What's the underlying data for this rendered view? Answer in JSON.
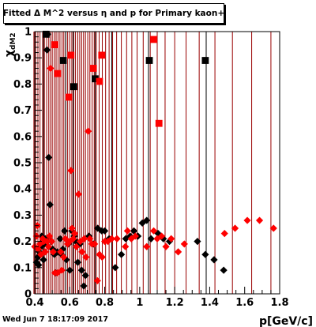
{
  "chart_data": {
    "type": "scatter",
    "title": "Fitted Δ M^2 versus η and p for Primary kaon+",
    "xlabel": "p[GeV/c]",
    "ylabel": "χdM2",
    "xlim": [
      0.4,
      1.8
    ],
    "ylim": [
      0,
      1
    ],
    "x_ticks": [
      "0.4",
      "0.6",
      "0.8",
      "1",
      "1.2",
      "1.4",
      "1.6",
      "1.8"
    ],
    "y_ticks": [
      "0",
      "0.1",
      "0.2",
      "0.3",
      "0.4",
      "0.5",
      "0.6",
      "0.7",
      "0.8",
      "0.9",
      "1"
    ],
    "grid": "vertical lines",
    "colors": {
      "red": "#ff0000",
      "darkred": "#990000",
      "black": "#000000"
    },
    "vertical_lines": [
      {
        "x": 0.395,
        "color": "darkred"
      },
      {
        "x": 0.405,
        "color": "darkred"
      },
      {
        "x": 0.418,
        "color": "darkred"
      },
      {
        "x": 0.43,
        "color": "darkred"
      },
      {
        "x": 0.445,
        "color": "darkred"
      },
      {
        "x": 0.455,
        "color": "darkred"
      },
      {
        "x": 0.468,
        "color": "darkred"
      },
      {
        "x": 0.48,
        "color": "darkred"
      },
      {
        "x": 0.49,
        "color": "darkred"
      },
      {
        "x": 0.5,
        "color": "darkred"
      },
      {
        "x": 0.512,
        "color": "darkred"
      },
      {
        "x": 0.522,
        "color": "darkred"
      },
      {
        "x": 0.533,
        "color": "darkred"
      },
      {
        "x": 0.544,
        "color": "darkred"
      },
      {
        "x": 0.556,
        "color": "darkred"
      },
      {
        "x": 0.566,
        "color": "darkred"
      },
      {
        "x": 0.577,
        "color": "darkred"
      },
      {
        "x": 0.588,
        "color": "darkred"
      },
      {
        "x": 0.6,
        "color": "darkred"
      },
      {
        "x": 0.612,
        "color": "darkred"
      },
      {
        "x": 0.623,
        "color": "darkred"
      },
      {
        "x": 0.633,
        "color": "darkred"
      },
      {
        "x": 0.646,
        "color": "darkred"
      },
      {
        "x": 0.657,
        "color": "darkred"
      },
      {
        "x": 0.668,
        "color": "darkred"
      },
      {
        "x": 0.679,
        "color": "darkred"
      },
      {
        "x": 0.69,
        "color": "darkred"
      },
      {
        "x": 0.703,
        "color": "darkred"
      },
      {
        "x": 0.715,
        "color": "darkred"
      },
      {
        "x": 0.728,
        "color": "darkred"
      },
      {
        "x": 0.74,
        "color": "darkred"
      },
      {
        "x": 0.752,
        "color": "darkred"
      },
      {
        "x": 0.768,
        "color": "darkred"
      },
      {
        "x": 0.786,
        "color": "darkred"
      },
      {
        "x": 0.805,
        "color": "darkred"
      },
      {
        "x": 0.825,
        "color": "darkred"
      },
      {
        "x": 0.845,
        "color": "darkred"
      },
      {
        "x": 0.868,
        "color": "darkred"
      },
      {
        "x": 0.895,
        "color": "darkred"
      },
      {
        "x": 0.925,
        "color": "darkred"
      },
      {
        "x": 0.955,
        "color": "darkred"
      },
      {
        "x": 0.985,
        "color": "darkred"
      },
      {
        "x": 1.02,
        "color": "darkred"
      },
      {
        "x": 1.06,
        "color": "darkred"
      },
      {
        "x": 1.1,
        "color": "darkred"
      },
      {
        "x": 1.145,
        "color": "darkred"
      },
      {
        "x": 1.2,
        "color": "darkred"
      },
      {
        "x": 1.265,
        "color": "darkred"
      },
      {
        "x": 1.34,
        "color": "darkred"
      },
      {
        "x": 1.43,
        "color": "darkred"
      },
      {
        "x": 1.53,
        "color": "darkred"
      },
      {
        "x": 1.64,
        "color": "darkred"
      },
      {
        "x": 1.75,
        "color": "darkred"
      },
      {
        "x": 0.45,
        "color": "black"
      },
      {
        "x": 0.577,
        "color": "black"
      },
      {
        "x": 0.62,
        "color": "black"
      },
      {
        "x": 0.745,
        "color": "black"
      },
      {
        "x": 0.84,
        "color": "black"
      },
      {
        "x": 1.05,
        "color": "black"
      },
      {
        "x": 1.38,
        "color": "black"
      }
    ],
    "series": [
      {
        "color": "black",
        "squares": [
          [
            0.465,
            0.99
          ],
          [
            0.563,
            0.89
          ],
          [
            0.623,
            0.79
          ],
          [
            0.745,
            0.82
          ],
          [
            1.055,
            0.89
          ],
          [
            1.375,
            0.89
          ]
        ],
        "diamonds": [
          [
            0.41,
            0.12
          ],
          [
            0.418,
            0.14
          ],
          [
            0.422,
            0.11
          ],
          [
            0.426,
            0.16
          ],
          [
            0.43,
            0.15
          ],
          [
            0.436,
            0.18
          ],
          [
            0.44,
            0.22
          ],
          [
            0.445,
            0.2
          ],
          [
            0.45,
            0.13
          ],
          [
            0.455,
            0.19
          ],
          [
            0.462,
            0.21
          ],
          [
            0.47,
            0.93
          ],
          [
            0.474,
            0.99
          ],
          [
            0.48,
            0.52
          ],
          [
            0.487,
            0.34
          ],
          [
            0.495,
            0.2
          ],
          [
            0.503,
            0.17
          ],
          [
            0.512,
            0.15
          ],
          [
            0.52,
            0.08
          ],
          [
            0.53,
            0.16
          ],
          [
            0.545,
            0.21
          ],
          [
            0.553,
            0.15
          ],
          [
            0.56,
            0.17
          ],
          [
            0.57,
            0.24
          ],
          [
            0.58,
            0.13
          ],
          [
            0.592,
            0.19
          ],
          [
            0.6,
            0.09
          ],
          [
            0.612,
            0.24
          ],
          [
            0.625,
            0.22
          ],
          [
            0.635,
            0.2
          ],
          [
            0.646,
            0.12
          ],
          [
            0.658,
            0.19
          ],
          [
            0.668,
            0.09
          ],
          [
            0.68,
            0.03
          ],
          [
            0.69,
            0.07
          ],
          [
            0.71,
            0.22
          ],
          [
            0.735,
            0.19
          ],
          [
            0.76,
            0.25
          ],
          [
            0.783,
            0.24
          ],
          [
            0.8,
            0.24
          ],
          [
            0.825,
            0.21
          ],
          [
            0.86,
            0.1
          ],
          [
            0.895,
            0.15
          ],
          [
            0.92,
            0.21
          ],
          [
            0.945,
            0.22
          ],
          [
            0.967,
            0.24
          ],
          [
            0.99,
            0.22
          ],
          [
            1.015,
            0.27
          ],
          [
            1.04,
            0.28
          ],
          [
            1.065,
            0.21
          ],
          [
            1.105,
            0.23
          ],
          [
            1.135,
            0.21
          ],
          [
            1.17,
            0.2
          ],
          [
            1.33,
            0.2
          ],
          [
            1.375,
            0.15
          ],
          [
            1.425,
            0.13
          ],
          [
            1.48,
            0.09
          ]
        ]
      },
      {
        "color": "red",
        "squares": [
          [
            0.515,
            0.95
          ],
          [
            0.53,
            0.84
          ],
          [
            0.595,
            0.75
          ],
          [
            0.607,
            0.91
          ],
          [
            0.735,
            0.86
          ],
          [
            0.77,
            0.81
          ],
          [
            0.783,
            0.91
          ],
          [
            1.08,
            0.97
          ],
          [
            1.11,
            0.65
          ]
        ],
        "diamonds": [
          [
            0.4,
            0.18
          ],
          [
            0.41,
            0.22
          ],
          [
            0.415,
            0.26
          ],
          [
            0.42,
            0.17
          ],
          [
            0.43,
            0.19
          ],
          [
            0.435,
            0.15
          ],
          [
            0.445,
            0.21
          ],
          [
            0.452,
            0.2
          ],
          [
            0.46,
            0.16
          ],
          [
            0.47,
            0.2
          ],
          [
            0.478,
            0.18
          ],
          [
            0.484,
            0.22
          ],
          [
            0.49,
            0.86
          ],
          [
            0.497,
            0.2
          ],
          [
            0.505,
            0.16
          ],
          [
            0.515,
            0.08
          ],
          [
            0.53,
            0.08
          ],
          [
            0.548,
            0.16
          ],
          [
            0.555,
            0.09
          ],
          [
            0.565,
            0.14
          ],
          [
            0.575,
            0.21
          ],
          [
            0.588,
            0.19
          ],
          [
            0.6,
            0.2
          ],
          [
            0.607,
            0.47
          ],
          [
            0.613,
            0.25
          ],
          [
            0.62,
            0.21
          ],
          [
            0.628,
            0.23
          ],
          [
            0.638,
            0.18
          ],
          [
            0.65,
            0.38
          ],
          [
            0.66,
            0.2
          ],
          [
            0.67,
            0.16
          ],
          [
            0.683,
            0.21
          ],
          [
            0.693,
            0.14
          ],
          [
            0.705,
            0.62
          ],
          [
            0.715,
            0.21
          ],
          [
            0.727,
            0.19
          ],
          [
            0.742,
            0.19
          ],
          [
            0.758,
            0.05
          ],
          [
            0.77,
            0.15
          ],
          [
            0.785,
            0.14
          ],
          [
            0.8,
            0.2
          ],
          [
            0.818,
            0.2
          ],
          [
            0.84,
            0.21
          ],
          [
            0.87,
            0.21
          ],
          [
            0.918,
            0.18
          ],
          [
            0.93,
            0.24
          ],
          [
            0.952,
            0.21
          ],
          [
            0.975,
            0.22
          ],
          [
            1.04,
            0.18
          ],
          [
            1.08,
            0.24
          ],
          [
            1.1,
            0.21
          ],
          [
            1.125,
            0.22
          ],
          [
            1.15,
            0.18
          ],
          [
            1.18,
            0.21
          ],
          [
            1.22,
            0.16
          ],
          [
            1.255,
            0.19
          ],
          [
            1.485,
            0.23
          ],
          [
            1.545,
            0.25
          ],
          [
            1.615,
            0.28
          ],
          [
            1.685,
            0.28
          ],
          [
            1.765,
            0.25
          ]
        ]
      }
    ]
  },
  "header": {
    "title": "Fitted Δ M^2 versus η and p for Primary kaon+"
  },
  "footer": {
    "timestamp": "Wed Jun  7 18:17:09 2017"
  },
  "axes": {
    "xlabel": "p[GeV/c]",
    "ylabel_main": "χ",
    "ylabel_sub": "dM2"
  }
}
